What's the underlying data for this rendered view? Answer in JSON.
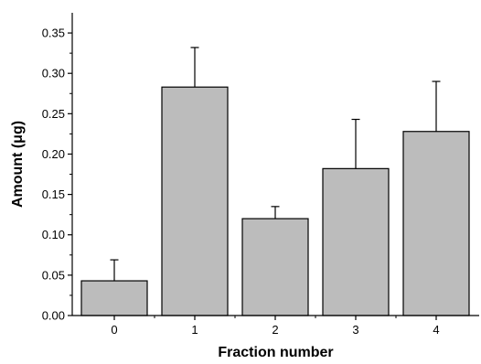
{
  "chart_data": {
    "type": "bar",
    "title": "",
    "xlabel": "Fraction number",
    "ylabel": "Amount (μg)",
    "categories": [
      "0",
      "1",
      "2",
      "3",
      "4"
    ],
    "values": [
      0.043,
      0.283,
      0.12,
      0.182,
      0.228
    ],
    "errors": [
      0.026,
      0.049,
      0.015,
      0.061,
      0.062
    ],
    "ylim": [
      0,
      0.375
    ],
    "yticks": [
      0.0,
      0.05,
      0.1,
      0.15,
      0.2,
      0.25,
      0.3,
      0.35
    ],
    "ytick_labels": [
      "0.00",
      "0.05",
      "0.10",
      "0.15",
      "0.20",
      "0.25",
      "0.30",
      "0.35"
    ],
    "grid": false,
    "legend": "none",
    "colors": {
      "bar_fill": "#bcbcbc",
      "bar_stroke": "#000000",
      "axis": "#000000"
    }
  }
}
